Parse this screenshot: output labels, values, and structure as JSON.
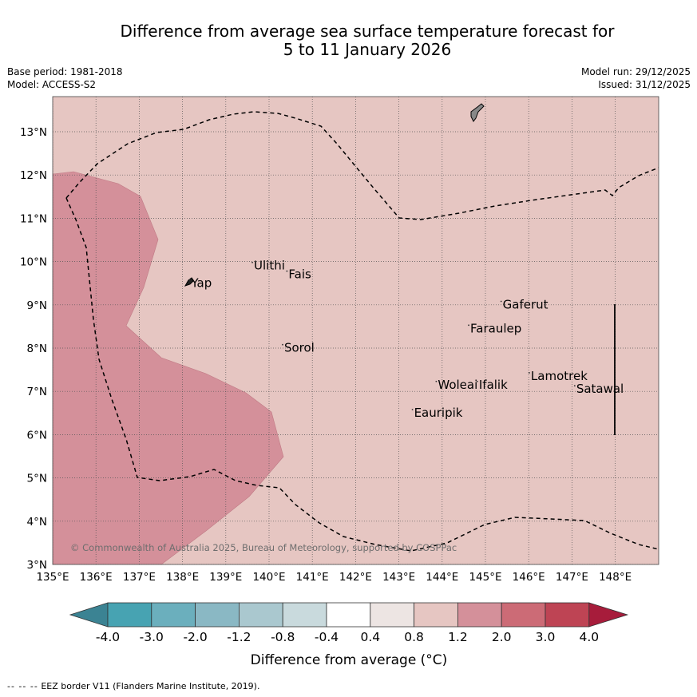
{
  "title": {
    "line1": "Difference from average sea surface temperature forecast for",
    "line2": "5 to 11 January 2026"
  },
  "meta": {
    "base_period": "Base period: 1981-2018",
    "model": "Model: ACCESS-S2",
    "model_run": "Model run: 29/12/2025",
    "issued": "Issued: 31/12/2025"
  },
  "map": {
    "background_color": "#e6c6c2",
    "anomaly_color": "#d4909a",
    "lon_range": [
      135,
      149
    ],
    "lat_range": [
      3,
      13.8
    ],
    "lon_ticks": [
      "135°E",
      "136°E",
      "137°E",
      "138°E",
      "139°E",
      "140°E",
      "141°E",
      "142°E",
      "143°E",
      "144°E",
      "145°E",
      "146°E",
      "147°E",
      "148°E"
    ],
    "lat_ticks": [
      "3°N",
      "4°N",
      "5°N",
      "6°N",
      "7°N",
      "8°N",
      "9°N",
      "10°N",
      "11°N",
      "12°N",
      "13°N"
    ],
    "places": [
      {
        "name": "Yap",
        "lon": 138.2,
        "lat": 9.45
      },
      {
        "name": "Ulithi",
        "lon": 139.65,
        "lat": 9.85
      },
      {
        "name": "Fais",
        "lon": 140.45,
        "lat": 9.65
      },
      {
        "name": "Sorol",
        "lon": 140.35,
        "lat": 7.95
      },
      {
        "name": "Gaferut",
        "lon": 145.4,
        "lat": 8.95
      },
      {
        "name": "Faraulep",
        "lon": 144.65,
        "lat": 8.4
      },
      {
        "name": "Woleai",
        "lon": 143.9,
        "lat": 7.1
      },
      {
        "name": "Ifalik",
        "lon": 144.85,
        "lat": 7.1
      },
      {
        "name": "Lamotrek",
        "lon": 146.05,
        "lat": 7.3
      },
      {
        "name": "Satawal",
        "lon": 147.1,
        "lat": 7.0
      },
      {
        "name": "Eauripik",
        "lon": 143.35,
        "lat": 6.45
      }
    ],
    "copyright": "© Commonwealth of Australia 2025, Bureau of Meteorology, supported by COSPPac"
  },
  "colorbar": {
    "labels": [
      "-4.0",
      "-3.0",
      "-2.0",
      "-1.2",
      "-0.8",
      "-0.4",
      "0.4",
      "0.8",
      "1.2",
      "2.0",
      "3.0",
      "4.0"
    ],
    "colors": [
      "#3b8393",
      "#47a3b2",
      "#6bafbd",
      "#8ab8c4",
      "#aac8cf",
      "#c9dadd",
      "#ffffff",
      "#ede5e3",
      "#e6c6c2",
      "#d4909a",
      "#cc6b76",
      "#be4454",
      "#a71c3b"
    ],
    "label": "Difference from average (°C)"
  },
  "footer": {
    "dash": "-- -- --",
    "text": "EEZ border V11 (Flanders Marine Institute, 2019)."
  }
}
